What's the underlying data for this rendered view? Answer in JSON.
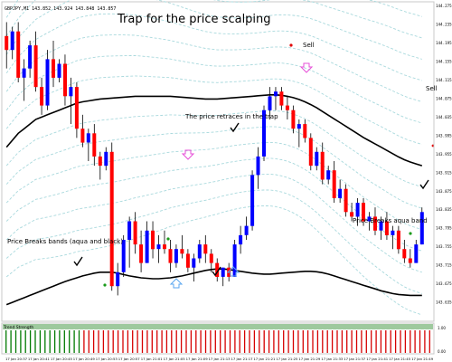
{
  "header": {
    "symbol_line": "GBPJPY,M1  143.852  143.924  143.848  143.857"
  },
  "chart_data": {
    "type": "candlestick",
    "title": "Trap for the price scalping",
    "price_range": [
      143.6,
      144.28
    ],
    "y_ticks": [
      "144.275",
      "144.235",
      "144.195",
      "144.155",
      "144.115",
      "144.075",
      "144.035",
      "143.995",
      "143.955",
      "143.915",
      "143.875",
      "143.835",
      "143.795",
      "143.755",
      "143.715",
      "143.675",
      "143.635"
    ],
    "x_ticks": [
      "17 Jan 20:37",
      "17 Jan 20:41",
      "17 Jan 20:45",
      "17 Jan 20:49",
      "17 Jan 20:53",
      "17 Jan 20:57",
      "17 Jan 21:01",
      "17 Jan 21:05",
      "17 Jan 21:09",
      "17 Jan 21:13",
      "17 Jan 21:17",
      "17 Jan 21:21",
      "17 Jan 21:25",
      "17 Jan 21:29",
      "17 Jan 21:33",
      "17 Jan 21:37",
      "17 Jan 21:41",
      "17 Jan 21:45",
      "17 Jan 21:49"
    ],
    "candles": [
      {
        "o": 144.21,
        "h": 144.24,
        "l": 144.14,
        "c": 144.18
      },
      {
        "o": 144.18,
        "h": 144.23,
        "l": 144.16,
        "c": 144.22
      },
      {
        "o": 144.22,
        "h": 144.24,
        "l": 144.11,
        "c": 144.12
      },
      {
        "o": 144.12,
        "h": 144.16,
        "l": 144.07,
        "c": 144.14
      },
      {
        "o": 144.14,
        "h": 144.2,
        "l": 144.12,
        "c": 144.19
      },
      {
        "o": 144.19,
        "h": 144.22,
        "l": 144.09,
        "c": 144.1
      },
      {
        "o": 144.1,
        "h": 144.12,
        "l": 144.04,
        "c": 144.06
      },
      {
        "o": 144.06,
        "h": 144.18,
        "l": 144.05,
        "c": 144.16
      },
      {
        "o": 144.16,
        "h": 144.2,
        "l": 144.1,
        "c": 144.12
      },
      {
        "o": 144.12,
        "h": 144.16,
        "l": 144.11,
        "c": 144.15
      },
      {
        "o": 144.15,
        "h": 144.17,
        "l": 144.06,
        "c": 144.08
      },
      {
        "o": 144.08,
        "h": 144.12,
        "l": 144.02,
        "c": 144.1
      },
      {
        "o": 144.1,
        "h": 144.11,
        "l": 143.99,
        "c": 144.01
      },
      {
        "o": 144.01,
        "h": 144.04,
        "l": 143.97,
        "c": 143.98
      },
      {
        "o": 143.98,
        "h": 144.01,
        "l": 143.94,
        "c": 144.0
      },
      {
        "o": 144.0,
        "h": 144.02,
        "l": 143.93,
        "c": 143.95
      },
      {
        "o": 143.95,
        "h": 143.96,
        "l": 143.9,
        "c": 143.93
      },
      {
        "o": 143.93,
        "h": 143.97,
        "l": 143.92,
        "c": 143.96
      },
      {
        "o": 143.96,
        "h": 143.98,
        "l": 143.66,
        "c": 143.67
      },
      {
        "o": 143.67,
        "h": 143.72,
        "l": 143.65,
        "c": 143.7
      },
      {
        "o": 143.7,
        "h": 143.78,
        "l": 143.69,
        "c": 143.77
      },
      {
        "o": 143.77,
        "h": 143.82,
        "l": 143.71,
        "c": 143.81
      },
      {
        "o": 143.81,
        "h": 143.83,
        "l": 143.74,
        "c": 143.76
      },
      {
        "o": 143.76,
        "h": 143.79,
        "l": 143.7,
        "c": 143.72
      },
      {
        "o": 143.72,
        "h": 143.81,
        "l": 143.72,
        "c": 143.79
      },
      {
        "o": 143.79,
        "h": 143.81,
        "l": 143.73,
        "c": 143.75
      },
      {
        "o": 143.75,
        "h": 143.78,
        "l": 143.72,
        "c": 143.76
      },
      {
        "o": 143.76,
        "h": 143.79,
        "l": 143.74,
        "c": 143.75
      },
      {
        "o": 143.75,
        "h": 143.77,
        "l": 143.7,
        "c": 143.72
      },
      {
        "o": 143.72,
        "h": 143.76,
        "l": 143.71,
        "c": 143.75
      },
      {
        "o": 143.75,
        "h": 143.78,
        "l": 143.73,
        "c": 143.74
      },
      {
        "o": 143.74,
        "h": 143.75,
        "l": 143.7,
        "c": 143.71
      },
      {
        "o": 143.71,
        "h": 143.74,
        "l": 143.68,
        "c": 143.73
      },
      {
        "o": 143.73,
        "h": 143.77,
        "l": 143.72,
        "c": 143.76
      },
      {
        "o": 143.76,
        "h": 143.78,
        "l": 143.72,
        "c": 143.74
      },
      {
        "o": 143.74,
        "h": 143.75,
        "l": 143.7,
        "c": 143.72
      },
      {
        "o": 143.72,
        "h": 143.73,
        "l": 143.68,
        "c": 143.69
      },
      {
        "o": 143.69,
        "h": 143.71,
        "l": 143.67,
        "c": 143.71
      },
      {
        "o": 143.71,
        "h": 143.72,
        "l": 143.68,
        "c": 143.69
      },
      {
        "o": 143.69,
        "h": 143.77,
        "l": 143.69,
        "c": 143.76
      },
      {
        "o": 143.76,
        "h": 143.8,
        "l": 143.74,
        "c": 143.78
      },
      {
        "o": 143.78,
        "h": 143.82,
        "l": 143.77,
        "c": 143.8
      },
      {
        "o": 143.8,
        "h": 143.92,
        "l": 143.79,
        "c": 143.91
      },
      {
        "o": 143.91,
        "h": 143.97,
        "l": 143.88,
        "c": 143.95
      },
      {
        "o": 143.95,
        "h": 144.06,
        "l": 143.94,
        "c": 144.05
      },
      {
        "o": 144.05,
        "h": 144.1,
        "l": 144.03,
        "c": 144.08
      },
      {
        "o": 144.08,
        "h": 144.1,
        "l": 144.05,
        "c": 144.09
      },
      {
        "o": 144.09,
        "h": 144.1,
        "l": 144.05,
        "c": 144.06
      },
      {
        "o": 144.06,
        "h": 144.08,
        "l": 144.03,
        "c": 144.05
      },
      {
        "o": 144.05,
        "h": 144.06,
        "l": 144.0,
        "c": 144.01
      },
      {
        "o": 144.01,
        "h": 144.03,
        "l": 143.97,
        "c": 144.02
      },
      {
        "o": 144.02,
        "h": 144.03,
        "l": 143.98,
        "c": 143.99
      },
      {
        "o": 143.99,
        "h": 144.0,
        "l": 143.92,
        "c": 143.93
      },
      {
        "o": 143.93,
        "h": 143.97,
        "l": 143.92,
        "c": 143.96
      },
      {
        "o": 143.96,
        "h": 143.98,
        "l": 143.89,
        "c": 143.9
      },
      {
        "o": 143.9,
        "h": 143.93,
        "l": 143.89,
        "c": 143.92
      },
      {
        "o": 143.92,
        "h": 143.94,
        "l": 143.85,
        "c": 143.86
      },
      {
        "o": 143.86,
        "h": 143.9,
        "l": 143.85,
        "c": 143.88
      },
      {
        "o": 143.88,
        "h": 143.89,
        "l": 143.82,
        "c": 143.83
      },
      {
        "o": 143.83,
        "h": 143.85,
        "l": 143.81,
        "c": 143.82
      },
      {
        "o": 143.82,
        "h": 143.86,
        "l": 143.8,
        "c": 143.85
      },
      {
        "o": 143.85,
        "h": 143.86,
        "l": 143.8,
        "c": 143.81
      },
      {
        "o": 143.81,
        "h": 143.83,
        "l": 143.79,
        "c": 143.82
      },
      {
        "o": 143.82,
        "h": 143.84,
        "l": 143.78,
        "c": 143.79
      },
      {
        "o": 143.79,
        "h": 143.82,
        "l": 143.77,
        "c": 143.81
      },
      {
        "o": 143.81,
        "h": 143.83,
        "l": 143.77,
        "c": 143.78
      },
      {
        "o": 143.78,
        "h": 143.8,
        "l": 143.75,
        "c": 143.79
      },
      {
        "o": 143.79,
        "h": 143.8,
        "l": 143.74,
        "c": 143.75
      },
      {
        "o": 143.75,
        "h": 143.77,
        "l": 143.72,
        "c": 143.73
      },
      {
        "o": 143.73,
        "h": 143.75,
        "l": 143.71,
        "c": 143.72
      },
      {
        "o": 143.72,
        "h": 143.77,
        "l": 143.72,
        "c": 143.76
      },
      {
        "o": 143.76,
        "h": 143.84,
        "l": 143.76,
        "c": 143.83
      }
    ],
    "middle_band": [
      143.97,
      143.985,
      144.0,
      144.01,
      144.02,
      144.03,
      144.035,
      144.04,
      144.045,
      144.05,
      144.055,
      144.06,
      144.065,
      144.068,
      144.07,
      144.072,
      144.074,
      144.075,
      144.076,
      144.077,
      144.078,
      144.079,
      144.08,
      144.08,
      144.08,
      144.08,
      144.08,
      144.08,
      144.08,
      144.079,
      144.078,
      144.077,
      144.076,
      144.075,
      144.074,
      144.074,
      144.074,
      144.075,
      144.076,
      144.077,
      144.078,
      144.079,
      144.08,
      144.081,
      144.082,
      144.083,
      144.083,
      144.082,
      144.08,
      144.077,
      144.073,
      144.068,
      144.062,
      144.055,
      144.047,
      144.039,
      144.031,
      144.023,
      144.015,
      144.007,
      143.999,
      143.991,
      143.984,
      143.977,
      143.97,
      143.963,
      143.956,
      143.949,
      143.943,
      143.938,
      143.934,
      143.93
    ],
    "lower_band": [
      143.63,
      143.635,
      143.64,
      143.645,
      143.65,
      143.655,
      143.66,
      143.665,
      143.67,
      143.675,
      143.68,
      143.684,
      143.688,
      143.692,
      143.695,
      143.698,
      143.7,
      143.7,
      143.7,
      143.698,
      143.695,
      143.692,
      143.69,
      143.688,
      143.687,
      143.686,
      143.686,
      143.687,
      143.688,
      143.69,
      143.692,
      143.695,
      143.698,
      143.701,
      143.704,
      143.706,
      143.707,
      143.707,
      143.706,
      143.704,
      143.702,
      143.7,
      143.698,
      143.697,
      143.696,
      143.696,
      143.697,
      143.698,
      143.699,
      143.7,
      143.701,
      143.702,
      143.702,
      143.701,
      143.699,
      143.696,
      143.692,
      143.688,
      143.684,
      143.68,
      143.676,
      143.672,
      143.668,
      143.664,
      143.66,
      143.657,
      143.654,
      143.652,
      143.651,
      143.65,
      143.65,
      143.65
    ],
    "band_offsets": [
      -0.28,
      -0.24,
      -0.2,
      -0.16,
      -0.12,
      -0.08,
      -0.04,
      0.04,
      0.08,
      0.12,
      0.16,
      0.2,
      0.24,
      0.28
    ],
    "band_top_left": 144.3,
    "band_top_right": 144.26,
    "annotations": {
      "sell_top": "Sell",
      "sell_right": "Sell",
      "retrace": "The price retraces in the trap",
      "breaks_left": "Price Breaks bands (aqua and black)",
      "breaks_right": "Price Breaks aqua band"
    },
    "indicator": {
      "green_count": 16,
      "red_count": 72,
      "label": "Trend Strength"
    },
    "colors": {
      "bull": "#0000ff",
      "bear": "#ff0000",
      "wick": "#000000",
      "black_band": "#000000",
      "aqua_band": "#a9d9dd",
      "arrow_magenta": "#e64fd7",
      "arrow_blue": "#5aa6f0",
      "ind_green": "#007a00",
      "ind_red": "#d60000",
      "ind_strip": "#9ec99e"
    }
  }
}
